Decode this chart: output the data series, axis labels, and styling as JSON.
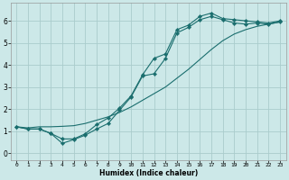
{
  "title": "",
  "xlabel": "Humidex (Indice chaleur)",
  "ylabel": "",
  "bg_color": "#cce8e8",
  "grid_color": "#aacccc",
  "line_color": "#1a6e6e",
  "xlim": [
    -0.5,
    23.5
  ],
  "ylim": [
    -0.3,
    6.8
  ],
  "yticks": [
    0,
    1,
    2,
    3,
    4,
    5,
    6
  ],
  "xticks": [
    0,
    1,
    2,
    3,
    4,
    5,
    6,
    7,
    8,
    9,
    10,
    11,
    12,
    13,
    14,
    15,
    16,
    17,
    18,
    19,
    20,
    21,
    22,
    23
  ],
  "line1_x": [
    0,
    1,
    2,
    3,
    4,
    5,
    6,
    7,
    8,
    9,
    10,
    11,
    12,
    13,
    14,
    15,
    16,
    17,
    18,
    19,
    20,
    21,
    22,
    23
  ],
  "line1_y": [
    1.2,
    1.1,
    1.1,
    0.9,
    0.65,
    0.65,
    0.88,
    1.3,
    1.6,
    2.05,
    2.6,
    3.55,
    4.3,
    4.5,
    5.6,
    5.8,
    6.2,
    6.35,
    6.1,
    6.05,
    6.0,
    5.95,
    5.9,
    6.0
  ],
  "line2_x": [
    0,
    1,
    2,
    3,
    4,
    5,
    6,
    7,
    8,
    9,
    10,
    11,
    12,
    13,
    14,
    15,
    16,
    17,
    18,
    19,
    20,
    21,
    22,
    23
  ],
  "line2_y": [
    1.2,
    1.1,
    1.1,
    0.9,
    0.45,
    0.62,
    0.82,
    1.1,
    1.35,
    1.95,
    2.55,
    3.5,
    3.6,
    4.3,
    5.45,
    5.7,
    6.05,
    6.2,
    6.05,
    5.9,
    5.85,
    5.9,
    5.85,
    5.95
  ],
  "line3_x": [
    0,
    1,
    2,
    3,
    4,
    5,
    6,
    7,
    8,
    9,
    10,
    11,
    12,
    13,
    14,
    15,
    16,
    17,
    18,
    19,
    20,
    21,
    22,
    23
  ],
  "line3_y": [
    1.2,
    1.15,
    1.2,
    1.2,
    1.22,
    1.25,
    1.35,
    1.5,
    1.65,
    1.85,
    2.1,
    2.4,
    2.7,
    3.0,
    3.4,
    3.8,
    4.25,
    4.7,
    5.1,
    5.4,
    5.6,
    5.75,
    5.85,
    5.95
  ]
}
